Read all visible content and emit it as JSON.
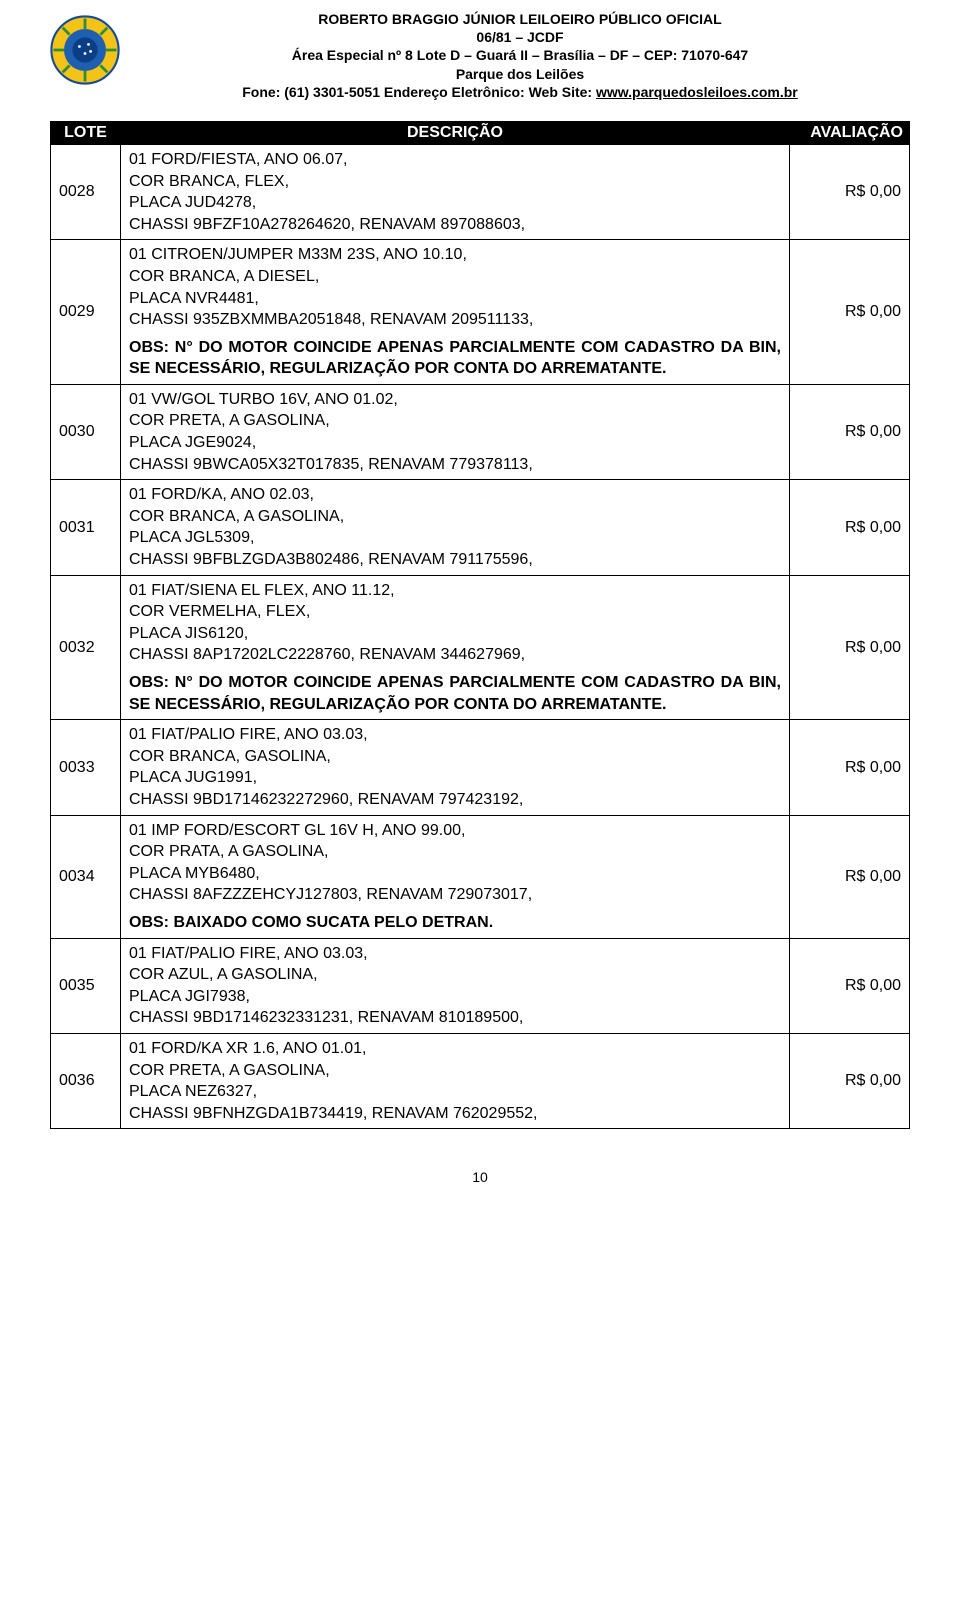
{
  "header": {
    "line1": "ROBERTO BRAGGIO JÚNIOR  LEILOEIRO PÚBLICO OFICIAL",
    "line2": "06/81 – JCDF",
    "line3": "Área Especial nº 8 Lote D – Guará II – Brasília – DF – CEP: 71070-647",
    "line4": "Parque dos Leilões",
    "line5_prefix": "Fone: (61) 3301-5051  Endereço Eletrônico: Web Site: ",
    "line5_link": "www.parquedosleiloes.com.br"
  },
  "emblem": {
    "colors": {
      "border": "#124a9e",
      "yellow": "#f3c317",
      "blue": "#1f5fb0",
      "green": "#2d8f3c",
      "inner": "#0b3f85"
    }
  },
  "columns": {
    "lote": "LOTE",
    "descricao": "DESCRIÇÃO",
    "avaliacao": "AVALIAÇÃO"
  },
  "rows": [
    {
      "lote": "0028",
      "avaliacao": "R$ 0,00",
      "lines": [
        "01 FORD/FIESTA, ANO 06.07,",
        "COR BRANCA, FLEX,",
        "PLACA JUD4278,",
        "CHASSI 9BFZF10A278264620, RENAVAM 897088603,"
      ],
      "obs": ""
    },
    {
      "lote": "0029",
      "avaliacao": "R$ 0,00",
      "lines": [
        "01 CITROEN/JUMPER M33M 23S, ANO 10.10,",
        "COR BRANCA, A DIESEL,",
        "PLACA NVR4481,",
        "CHASSI 935ZBXMMBA2051848, RENAVAM 209511133,"
      ],
      "obs": "OBS: N° DO MOTOR COINCIDE APENAS PARCIALMENTE COM CADASTRO DA BIN, SE NECESSÁRIO, REGULARIZAÇÃO POR CONTA DO ARREMATANTE."
    },
    {
      "lote": "0030",
      "avaliacao": "R$ 0,00",
      "lines": [
        "01 VW/GOL TURBO 16V, ANO 01.02,",
        "COR PRETA, A GASOLINA,",
        "PLACA JGE9024,",
        "CHASSI 9BWCA05X32T017835, RENAVAM 779378113,"
      ],
      "obs": ""
    },
    {
      "lote": "0031",
      "avaliacao": "R$ 0,00",
      "lines": [
        "01 FORD/KA, ANO 02.03,",
        "COR BRANCA, A GASOLINA,",
        "PLACA JGL5309,",
        "CHASSI 9BFBLZGDA3B802486, RENAVAM 791175596,"
      ],
      "obs": ""
    },
    {
      "lote": "0032",
      "avaliacao": "R$ 0,00",
      "lines": [
        "01 FIAT/SIENA EL FLEX, ANO 11.12,",
        "COR VERMELHA, FLEX,",
        "PLACA JIS6120,",
        "CHASSI 8AP17202LC2228760, RENAVAM 344627969,"
      ],
      "obs": "OBS: N° DO MOTOR COINCIDE APENAS PARCIALMENTE COM CADASTRO DA BIN, SE NECESSÁRIO, REGULARIZAÇÃO POR CONTA DO ARREMATANTE."
    },
    {
      "lote": "0033",
      "avaliacao": "R$ 0,00",
      "lines": [
        "01 FIAT/PALIO FIRE, ANO 03.03,",
        "COR BRANCA, GASOLINA,",
        "PLACA JUG1991,",
        "CHASSI 9BD17146232272960, RENAVAM 797423192,"
      ],
      "obs": ""
    },
    {
      "lote": "0034",
      "avaliacao": "R$ 0,00",
      "lines": [
        "01 IMP FORD/ESCORT  GL 16V H, ANO 99.00,",
        "COR PRATA, A GASOLINA,",
        "PLACA MYB6480,",
        "CHASSI 8AFZZZEHCYJ127803, RENAVAM 729073017,"
      ],
      "obs": "OBS: BAIXADO COMO SUCATA PELO DETRAN."
    },
    {
      "lote": "0035",
      "avaliacao": "R$ 0,00",
      "lines": [
        "01 FIAT/PALIO FIRE, ANO 03.03,",
        "COR AZUL, A GASOLINA,",
        "PLACA JGI7938,",
        "CHASSI 9BD17146232331231, RENAVAM 810189500,"
      ],
      "obs": ""
    },
    {
      "lote": "0036",
      "avaliacao": "R$ 0,00",
      "lines": [
        "01 FORD/KA XR 1.6, ANO 01.01,",
        "COR PRETA, A GASOLINA,",
        "PLACA NEZ6327,",
        "CHASSI 9BFNHZGDA1B734419, RENAVAM 762029552,"
      ],
      "obs": ""
    }
  ],
  "page_number": "10"
}
